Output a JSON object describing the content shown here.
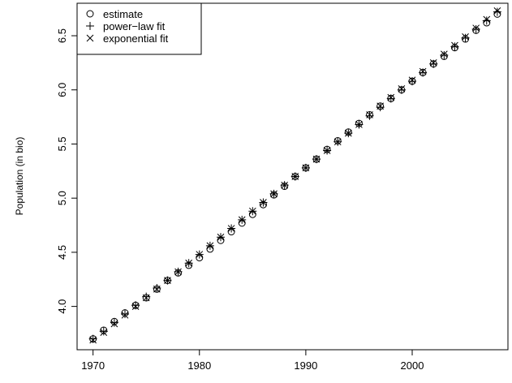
{
  "chart_data": {
    "type": "scatter",
    "title": "",
    "xlabel": "",
    "ylabel": "Population (in bio)",
    "xlim": [
      1968.5,
      2009
    ],
    "ylim": [
      3.6,
      6.8
    ],
    "x_ticks": [
      1970,
      1980,
      1990,
      2000
    ],
    "y_ticks": [
      4.0,
      4.5,
      5.0,
      5.5,
      6.0,
      6.5
    ],
    "y_tick_labels": [
      "4.0",
      "4.5",
      "5.0",
      "5.5",
      "6.0",
      "6.5"
    ],
    "grid": false,
    "legend": {
      "position": "top-left",
      "entries": [
        {
          "symbol": "○",
          "label": "estimate"
        },
        {
          "symbol": "+",
          "label": "power−law fit"
        },
        {
          "symbol": "×",
          "label": "exponential fit"
        }
      ]
    },
    "x": [
      1970,
      1971,
      1972,
      1973,
      1974,
      1975,
      1976,
      1977,
      1978,
      1979,
      1980,
      1981,
      1982,
      1983,
      1984,
      1985,
      1986,
      1987,
      1988,
      1989,
      1990,
      1991,
      1992,
      1993,
      1994,
      1995,
      1996,
      1997,
      1998,
      1999,
      2000,
      2001,
      2002,
      2003,
      2004,
      2005,
      2006,
      2007,
      2008
    ],
    "series": [
      {
        "name": "estimate",
        "marker": "circle",
        "values": [
          3.7,
          3.78,
          3.86,
          3.94,
          4.01,
          4.08,
          4.16,
          4.24,
          4.31,
          4.38,
          4.45,
          4.53,
          4.61,
          4.69,
          4.77,
          4.85,
          4.94,
          5.03,
          5.11,
          5.2,
          5.28,
          5.36,
          5.45,
          5.53,
          5.61,
          5.69,
          5.77,
          5.85,
          5.92,
          6.0,
          6.08,
          6.16,
          6.24,
          6.31,
          6.39,
          6.47,
          6.55,
          6.62,
          6.7
        ]
      },
      {
        "name": "power−law fit",
        "marker": "plus",
        "values": [
          3.7,
          3.77,
          3.85,
          3.93,
          4.01,
          4.09,
          4.17,
          4.24,
          4.32,
          4.4,
          4.48,
          4.56,
          4.64,
          4.72,
          4.8,
          4.88,
          4.96,
          5.04,
          5.12,
          5.2,
          5.28,
          5.36,
          5.44,
          5.52,
          5.6,
          5.68,
          5.76,
          5.84,
          5.92,
          6.0,
          6.08,
          6.16,
          6.24,
          6.32,
          6.4,
          6.48,
          6.56,
          6.64,
          6.72
        ]
      },
      {
        "name": "exponential fit",
        "marker": "cross",
        "values": [
          3.69,
          3.76,
          3.84,
          3.92,
          4.0,
          4.08,
          4.16,
          4.24,
          4.32,
          4.4,
          4.48,
          4.56,
          4.64,
          4.72,
          4.8,
          4.88,
          4.96,
          5.04,
          5.12,
          5.2,
          5.28,
          5.36,
          5.44,
          5.52,
          5.6,
          5.68,
          5.77,
          5.85,
          5.93,
          6.01,
          6.09,
          6.17,
          6.25,
          6.33,
          6.41,
          6.49,
          6.57,
          6.65,
          6.73
        ]
      }
    ]
  }
}
